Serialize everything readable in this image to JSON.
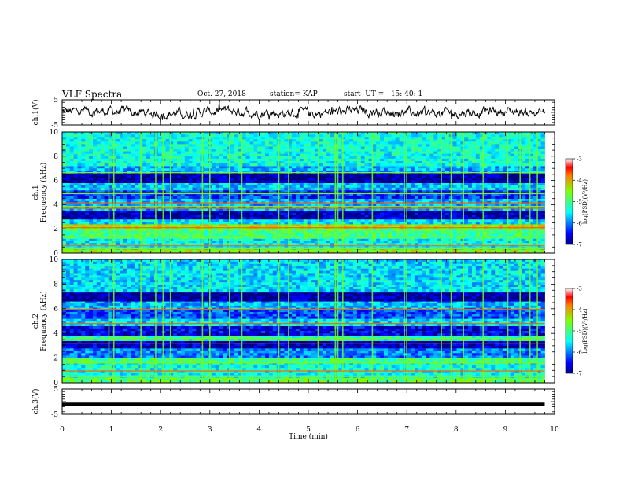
{
  "header": {
    "title": "VLF Spectra",
    "date": "Oct. 27, 2018",
    "station": "station= KAP",
    "start": "start  UT =   15: 40: 1"
  },
  "chart_data": [
    {
      "type": "line",
      "panel": "ch1-waveform",
      "ylabel": "ch.1(V)",
      "ylim": [
        -5,
        5
      ],
      "yticks": [
        "5",
        "-5"
      ],
      "xlim": [
        0,
        10
      ],
      "style": "noisy black trace around 0 V, amplitude about ±2 V, ends at ~9.8 min"
    },
    {
      "type": "heatmap",
      "panel": "ch1-spectrogram",
      "ylabel": "ch.1\nFrequency (kHz)",
      "ylim": [
        0,
        10
      ],
      "yticks": [
        "0",
        "2",
        "4",
        "6",
        "8",
        "10"
      ],
      "xlim": [
        0,
        10
      ],
      "colorbar": {
        "label": "log(PSD)(V²/Hz)",
        "range": [
          -7,
          -3
        ],
        "ticks": [
          "-3",
          "-4",
          "-5",
          "-6",
          "-7"
        ]
      },
      "bands_khz": [
        {
          "from": 0.0,
          "to": 0.3,
          "level": -4.5
        },
        {
          "from": 0.3,
          "to": 1.2,
          "level": -5.5
        },
        {
          "from": 1.2,
          "to": 2.0,
          "level": -5.0
        },
        {
          "from": 2.0,
          "to": 2.4,
          "level": -4.3
        },
        {
          "from": 2.4,
          "to": 2.8,
          "level": -5.6
        },
        {
          "from": 2.8,
          "to": 3.5,
          "level": -6.8
        },
        {
          "from": 3.5,
          "to": 4.5,
          "level": -5.8
        },
        {
          "from": 4.5,
          "to": 5.2,
          "level": -6.3
        },
        {
          "from": 5.2,
          "to": 5.8,
          "level": -5.7
        },
        {
          "from": 5.8,
          "to": 6.6,
          "level": -6.9
        },
        {
          "from": 6.6,
          "to": 7.2,
          "level": -5.8
        },
        {
          "from": 7.2,
          "to": 10.0,
          "level": -5.4
        }
      ],
      "lines_khz": [
        0.35,
        0.6,
        1.35,
        2.1,
        2.25,
        3.7,
        3.85,
        4.15,
        4.9,
        5.3,
        6.65
      ],
      "spikes_min": [
        0.95,
        1.05,
        1.6,
        1.9,
        2.05,
        2.2,
        2.85,
        3.0,
        3.4,
        3.65,
        4.4,
        4.6,
        5.2,
        5.55,
        5.6,
        5.7,
        6.3,
        6.95,
        7.0,
        7.7,
        7.9,
        8.15,
        8.55,
        9.05,
        9.3,
        9.5,
        9.65
      ]
    },
    {
      "type": "heatmap",
      "panel": "ch2-spectrogram",
      "ylabel": "ch.2\nFrequency (kHz)",
      "ylim": [
        0,
        10
      ],
      "yticks": [
        "0",
        "2",
        "4",
        "6",
        "8",
        "10"
      ],
      "xlim": [
        0,
        10
      ],
      "colorbar": {
        "label": "log(PSD)(V²/Hz)",
        "range": [
          -7,
          -3
        ],
        "ticks": [
          "-3",
          "-4",
          "-5",
          "-6",
          "-7"
        ]
      },
      "bands_khz": [
        {
          "from": 0.0,
          "to": 0.4,
          "level": -4.8
        },
        {
          "from": 0.4,
          "to": 1.6,
          "level": -5.4
        },
        {
          "from": 1.6,
          "to": 2.0,
          "level": -5.0
        },
        {
          "from": 2.0,
          "to": 2.8,
          "level": -6.0
        },
        {
          "from": 2.8,
          "to": 3.4,
          "level": -6.8
        },
        {
          "from": 3.4,
          "to": 3.8,
          "level": -5.2
        },
        {
          "from": 3.8,
          "to": 4.6,
          "level": -6.6
        },
        {
          "from": 4.6,
          "to": 5.2,
          "level": -5.6
        },
        {
          "from": 5.2,
          "to": 5.9,
          "level": -6.2
        },
        {
          "from": 5.9,
          "to": 6.6,
          "level": -5.8
        },
        {
          "from": 6.6,
          "to": 7.4,
          "level": -6.9
        },
        {
          "from": 7.4,
          "to": 10.0,
          "level": -5.6
        }
      ],
      "lines_khz": [
        0.5,
        0.95,
        1.6,
        3.2,
        3.6,
        4.8,
        5.0,
        5.95,
        7.35
      ],
      "spikes_min": [
        0.95,
        1.05,
        1.6,
        1.9,
        2.05,
        2.2,
        2.85,
        3.0,
        3.4,
        3.65,
        4.4,
        4.6,
        5.2,
        5.55,
        5.6,
        5.7,
        6.3,
        6.95,
        7.0,
        7.7,
        7.9,
        8.15,
        8.55,
        9.05,
        9.3,
        9.5,
        9.65
      ]
    },
    {
      "type": "line",
      "panel": "ch3-waveform",
      "ylabel": "ch.3(V)",
      "ylim": [
        -5,
        5
      ],
      "yticks": [
        "5",
        "-5"
      ],
      "xlim": [
        0,
        10
      ],
      "xlabel": "Time  (min)",
      "xticks": [
        "0",
        "1",
        "2",
        "3",
        "4",
        "5",
        "6",
        "7",
        "8",
        "9",
        "10"
      ],
      "style": "thick flat black line at about -1 V",
      "level_v": -1
    }
  ]
}
